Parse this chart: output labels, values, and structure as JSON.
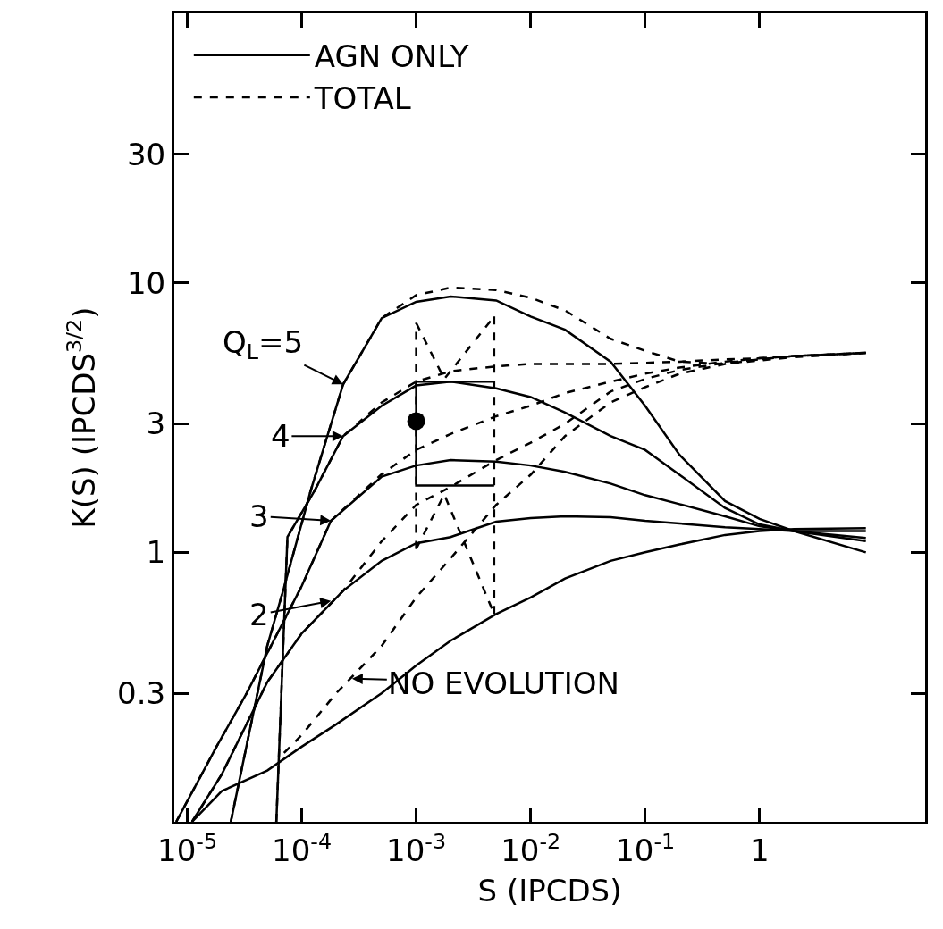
{
  "chart_data": {
    "type": "line",
    "xlabel": "S (IPCDS)",
    "ylabel": "K(S) (IPCDS$^{3/2}$)",
    "log": "xy",
    "xlim": [
      7.7e-06,
      28
    ],
    "ylim": [
      0.1,
      100
    ],
    "xticks": [
      {
        "value": 1e-05,
        "label": "10$^{-5}$"
      },
      {
        "value": 0.0001,
        "label": "10$^{-4}$"
      },
      {
        "value": 0.001,
        "label": "10$^{-3}$"
      },
      {
        "value": 0.01,
        "label": "10$^{-2}$"
      },
      {
        "value": 0.1,
        "label": "10$^{-1}$"
      },
      1
    ],
    "yticks": [
      0.3,
      1,
      3,
      10,
      30
    ],
    "legend": "top left",
    "series": [
      {
        "name": "AGN ONLY",
        "color": "#000000",
        "line_style": "solid",
        "x": [
          2.4e-05,
          5e-05,
          7e-05,
          0.00012,
          0.00023,
          0.0005,
          0.001,
          0.002,
          0.005,
          0.01,
          0.02,
          0.05,
          0.1,
          0.2,
          0.5,
          1,
          2,
          8.5
        ],
        "values": [
          0.1,
          0.45,
          0.74,
          1.7,
          4.2,
          7.4,
          8.5,
          8.9,
          8.6,
          7.5,
          6.7,
          5.1,
          3.5,
          2.3,
          1.55,
          1.33,
          1.2,
          1.0
        ]
      },
      {
        "name": "TOTAL",
        "color": "#000000",
        "line_style": "dashed",
        "x": [
          2.4e-05,
          5e-05,
          7e-05,
          0.00012,
          0.00023,
          0.0005,
          0.001,
          0.002,
          0.005,
          0.01,
          0.02,
          0.05,
          0.1,
          0.2,
          0.5,
          1,
          2,
          8.5
        ],
        "values": [
          0.1,
          0.45,
          0.74,
          1.7,
          4.2,
          7.4,
          9.0,
          9.6,
          9.4,
          8.8,
          7.9,
          6.2,
          5.6,
          5.1,
          5.0,
          5.15,
          5.3,
          5.5
        ]
      },
      {
        "color": "#000000",
        "line_style": "solid",
        "x": [
          6e-05,
          7.5e-05,
          0.00013,
          0.00023,
          0.0005,
          0.001,
          0.002,
          0.005,
          0.01,
          0.02,
          0.05,
          0.1,
          0.2,
          0.5,
          1,
          2,
          8.5
        ],
        "values": [
          0.1,
          1.14,
          1.7,
          2.7,
          3.5,
          4.16,
          4.3,
          4.06,
          3.77,
          3.3,
          2.7,
          2.4,
          1.94,
          1.46,
          1.27,
          1.2,
          1.1
        ]
      },
      {
        "color": "#000000",
        "line_style": "dashed",
        "x": [
          6e-05,
          7.5e-05,
          0.00013,
          0.00023,
          0.0005,
          0.001,
          0.002,
          0.005,
          0.01,
          0.02,
          0.05,
          0.1,
          0.2,
          0.5,
          1,
          2,
          8.5
        ],
        "values": [
          0.1,
          1.14,
          1.7,
          2.7,
          3.6,
          4.3,
          4.7,
          4.9,
          5.0,
          5.0,
          5.0,
          5.05,
          5.1,
          5.2,
          5.25,
          5.35,
          5.5
        ]
      },
      {
        "color": "#000000",
        "line_style": "solid",
        "x": [
          8e-06,
          1.8e-05,
          3.3e-05,
          0.0001,
          0.00018,
          0.0005,
          0.001,
          0.002,
          0.005,
          0.01,
          0.02,
          0.05,
          0.1,
          0.2,
          0.5,
          1,
          2,
          8.5
        ],
        "values": [
          0.1,
          0.19,
          0.3,
          0.75,
          1.31,
          1.91,
          2.1,
          2.2,
          2.17,
          2.1,
          1.99,
          1.8,
          1.63,
          1.51,
          1.36,
          1.25,
          1.2,
          1.13
        ]
      },
      {
        "color": "#000000",
        "line_style": "dashed",
        "x": [
          8e-06,
          1.8e-05,
          3.3e-05,
          0.0001,
          0.00018,
          0.0005,
          0.001,
          0.002,
          0.005,
          0.01,
          0.02,
          0.05,
          0.1,
          0.2,
          0.5,
          1,
          2,
          8.5
        ],
        "values": [
          0.1,
          0.19,
          0.3,
          0.75,
          1.31,
          1.95,
          2.4,
          2.75,
          3.2,
          3.5,
          3.9,
          4.3,
          4.6,
          4.85,
          5.1,
          5.25,
          5.35,
          5.5
        ]
      },
      {
        "color": "#000000",
        "line_style": "solid",
        "x": [
          1.1e-05,
          2e-05,
          5e-05,
          0.0001,
          0.00023,
          0.0005,
          0.001,
          0.002,
          0.005,
          0.01,
          0.02,
          0.05,
          0.1,
          0.2,
          0.5,
          1,
          2,
          8.5
        ],
        "values": [
          0.1,
          0.15,
          0.33,
          0.5,
          0.72,
          0.93,
          1.08,
          1.14,
          1.3,
          1.34,
          1.36,
          1.35,
          1.31,
          1.28,
          1.24,
          1.22,
          1.2,
          1.2
        ]
      },
      {
        "color": "#000000",
        "line_style": "dashed",
        "x": [
          1.1e-05,
          2e-05,
          5e-05,
          0.0001,
          0.00023,
          0.0005,
          0.001,
          0.002,
          0.005,
          0.01,
          0.02,
          0.05,
          0.1,
          0.2,
          0.5,
          1,
          2,
          8.5
        ],
        "values": [
          0.1,
          0.15,
          0.33,
          0.5,
          0.72,
          1.1,
          1.5,
          1.75,
          2.2,
          2.55,
          3.0,
          3.95,
          4.4,
          4.75,
          5.05,
          5.2,
          5.35,
          5.5
        ]
      },
      {
        "color": "#000000",
        "line_style": "solid",
        "x": [
          1.1e-05,
          2e-05,
          5e-05,
          0.0001,
          0.0002,
          0.0005,
          0.001,
          0.002,
          0.005,
          0.01,
          0.02,
          0.05,
          0.1,
          0.2,
          0.5,
          1,
          2,
          8.5
        ],
        "values": [
          0.1,
          0.13,
          0.155,
          0.19,
          0.23,
          0.3,
          0.38,
          0.47,
          0.59,
          0.68,
          0.8,
          0.93,
          1.0,
          1.07,
          1.16,
          1.2,
          1.22,
          1.23
        ]
      },
      {
        "color": "#000000",
        "line_style": "dashed",
        "x": [
          7e-05,
          0.0001,
          0.0002,
          0.0005,
          0.001,
          0.002,
          0.005,
          0.01,
          0.02,
          0.05,
          0.1,
          0.2,
          0.5,
          1,
          2,
          8.5
        ],
        "values": [
          0.18,
          0.21,
          0.3,
          0.45,
          0.68,
          0.95,
          1.5,
          1.94,
          2.7,
          3.6,
          4.1,
          4.6,
          5.0,
          5.2,
          5.35,
          5.5
        ]
      },
      {
        "color": "#000000",
        "line_style": "solid",
        "x": [
          0.0048,
          0.001,
          0.001,
          0.0048
        ],
        "values": [
          4.3,
          4.3,
          1.77,
          1.77
        ]
      },
      {
        "color": "#000000",
        "line_style": "dashed",
        "x": [
          0.001,
          0.001
        ],
        "values": [
          1.03,
          7.1
        ]
      },
      {
        "color": "#000000",
        "line_style": "dashed",
        "x": [
          0.001,
          0.00176,
          0.0048
        ],
        "values": [
          7.1,
          4.4,
          7.5
        ]
      },
      {
        "color": "#000000",
        "line_style": "dashed",
        "x": [
          0.0048,
          0.0048
        ],
        "values": [
          7.5,
          0.59
        ]
      },
      {
        "color": "#000000",
        "line_style": "dashed",
        "x": [
          0.001,
          0.00176,
          0.0048
        ],
        "values": [
          1.03,
          1.64,
          0.59
        ]
      },
      {
        "type": "scatter",
        "marker": "circle",
        "color": "#000000",
        "x": [
          0.001
        ],
        "values": [
          3.07
        ]
      }
    ],
    "annotations": [
      {
        "text": "Q$_{L}$=5",
        "x": 0.00023,
        "y": 4.2
      },
      {
        "text": "4",
        "x": 0.00023,
        "y": 2.7
      },
      {
        "text": "3",
        "x": 0.00018,
        "y": 1.31
      },
      {
        "text": "2",
        "x": 0.00018,
        "y": 0.66
      },
      {
        "text": "NO EVOLUTION",
        "x": 0.000275,
        "y": 0.34
      }
    ]
  }
}
